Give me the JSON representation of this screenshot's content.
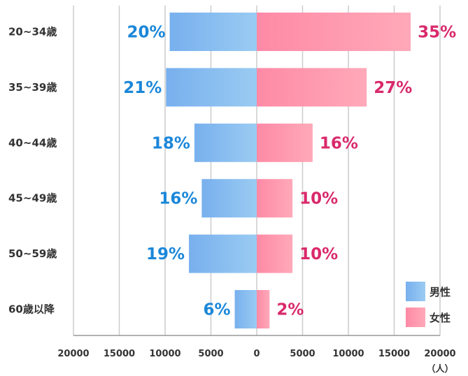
{
  "chart_data": {
    "type": "bar",
    "orientation": "horizontal-diverging",
    "categories": [
      "20~34歳",
      "35~39歳",
      "40~44歳",
      "45~49歳",
      "50~59歳",
      "60歳以降"
    ],
    "series": [
      {
        "name": "男性",
        "values": [
          9500,
          9900,
          6800,
          6000,
          7400,
          2400
        ],
        "labels": [
          "20%",
          "21%",
          "18%",
          "16%",
          "19%",
          "6%"
        ],
        "color": "#78b0ee",
        "gradient_color": "#9acbf2"
      },
      {
        "name": "女性",
        "values": [
          16800,
          12000,
          6100,
          3900,
          3900,
          1400
        ],
        "labels": [
          "35%",
          "27%",
          "16%",
          "10%",
          "10%",
          "2%"
        ],
        "color": "#fe8aa6",
        "gradient_color": "#ffa9b9"
      }
    ],
    "x_ticks": [
      "20000",
      "15000",
      "10000",
      "5000",
      "0",
      "5000",
      "10000",
      "15000",
      "20000"
    ],
    "xlim": [
      -20000,
      20000
    ],
    "unit_label": "（人）",
    "grid": true,
    "legend_position": "bottom-right",
    "colors": {
      "male_label": "#1b87d9",
      "female_label": "#d9296b",
      "grid": "#cccccc"
    }
  }
}
